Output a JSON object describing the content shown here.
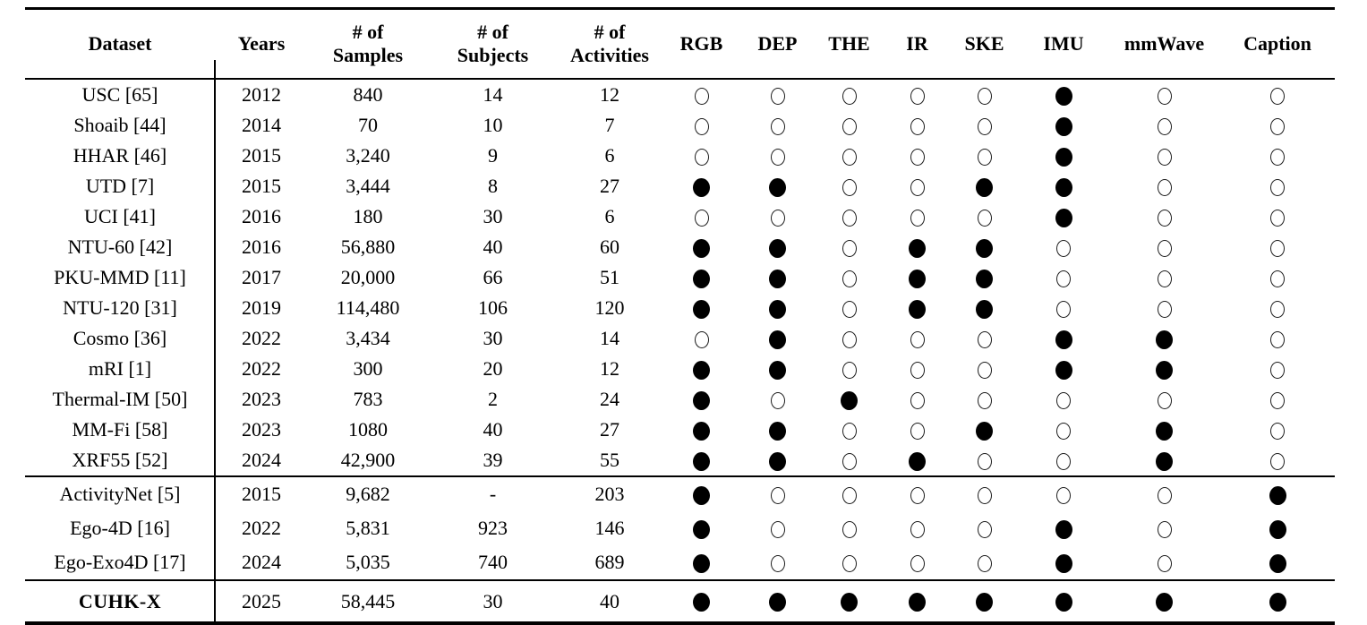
{
  "colors": {
    "background": "#ffffff",
    "text": "#000000",
    "rule": "#000000"
  },
  "icons": {
    "modality_present": "filled-circle",
    "modality_absent": "open-circle"
  },
  "table": {
    "columns": [
      {
        "id": "dataset",
        "label": "Dataset"
      },
      {
        "id": "years",
        "label": "Years"
      },
      {
        "id": "samples",
        "label": "# of\nSamples"
      },
      {
        "id": "subjects",
        "label": "# of\nSubjects"
      },
      {
        "id": "activities",
        "label": "# of\nActivities"
      },
      {
        "id": "rgb",
        "label": "RGB"
      },
      {
        "id": "dep",
        "label": "DEP"
      },
      {
        "id": "the",
        "label": "THE"
      },
      {
        "id": "ir",
        "label": "IR"
      },
      {
        "id": "ske",
        "label": "SKE"
      },
      {
        "id": "imu",
        "label": "IMU"
      },
      {
        "id": "mmwave",
        "label": "mmWave"
      },
      {
        "id": "caption",
        "label": "Caption"
      }
    ],
    "groups": [
      {
        "rows": [
          {
            "dataset": "USC [65]",
            "years": "2012",
            "samples": "840",
            "subjects": "14",
            "activities": "12",
            "modalities": [
              false,
              false,
              false,
              false,
              false,
              true,
              false,
              false
            ]
          },
          {
            "dataset": "Shoaib [44]",
            "years": "2014",
            "samples": "70",
            "subjects": "10",
            "activities": "7",
            "modalities": [
              false,
              false,
              false,
              false,
              false,
              true,
              false,
              false
            ]
          },
          {
            "dataset": "HHAR [46]",
            "years": "2015",
            "samples": "3,240",
            "subjects": "9",
            "activities": "6",
            "modalities": [
              false,
              false,
              false,
              false,
              false,
              true,
              false,
              false
            ]
          },
          {
            "dataset": "UTD [7]",
            "years": "2015",
            "samples": "3,444",
            "subjects": "8",
            "activities": "27",
            "modalities": [
              true,
              true,
              false,
              false,
              true,
              true,
              false,
              false
            ]
          },
          {
            "dataset": "UCI [41]",
            "years": "2016",
            "samples": "180",
            "subjects": "30",
            "activities": "6",
            "modalities": [
              false,
              false,
              false,
              false,
              false,
              true,
              false,
              false
            ]
          },
          {
            "dataset": "NTU-60 [42]",
            "years": "2016",
            "samples": "56,880",
            "subjects": "40",
            "activities": "60",
            "modalities": [
              true,
              true,
              false,
              true,
              true,
              false,
              false,
              false
            ]
          },
          {
            "dataset": "PKU-MMD [11]",
            "years": "2017",
            "samples": "20,000",
            "subjects": "66",
            "activities": "51",
            "modalities": [
              true,
              true,
              false,
              true,
              true,
              false,
              false,
              false
            ]
          },
          {
            "dataset": "NTU-120 [31]",
            "years": "2019",
            "samples": "114,480",
            "subjects": "106",
            "activities": "120",
            "modalities": [
              true,
              true,
              false,
              true,
              true,
              false,
              false,
              false
            ]
          },
          {
            "dataset": "Cosmo [36]",
            "years": "2022",
            "samples": "3,434",
            "subjects": "30",
            "activities": "14",
            "modalities": [
              false,
              true,
              false,
              false,
              false,
              true,
              true,
              false
            ]
          },
          {
            "dataset": "mRI [1]",
            "years": "2022",
            "samples": "300",
            "subjects": "20",
            "activities": "12",
            "modalities": [
              true,
              true,
              false,
              false,
              false,
              true,
              true,
              false
            ]
          },
          {
            "dataset": "Thermal-IM [50]",
            "years": "2023",
            "samples": "783",
            "subjects": "2",
            "activities": "24",
            "modalities": [
              true,
              false,
              true,
              false,
              false,
              false,
              false,
              false
            ]
          },
          {
            "dataset": "MM-Fi [58]",
            "years": "2023",
            "samples": "1080",
            "subjects": "40",
            "activities": "27",
            "modalities": [
              true,
              true,
              false,
              false,
              true,
              false,
              true,
              false
            ]
          },
          {
            "dataset": "XRF55 [52]",
            "years": "2024",
            "samples": "42,900",
            "subjects": "39",
            "activities": "55",
            "modalities": [
              true,
              true,
              false,
              true,
              false,
              false,
              true,
              false
            ]
          }
        ]
      },
      {
        "rows": [
          {
            "dataset": "ActivityNet [5]",
            "years": "2015",
            "samples": "9,682",
            "subjects": "-",
            "activities": "203",
            "modalities": [
              true,
              false,
              false,
              false,
              false,
              false,
              false,
              true
            ]
          },
          {
            "dataset": "Ego-4D [16]",
            "years": "2022",
            "samples": "5,831",
            "subjects": "923",
            "activities": "146",
            "modalities": [
              true,
              false,
              false,
              false,
              false,
              true,
              false,
              true
            ]
          },
          {
            "dataset": "Ego-Exo4D [17]",
            "years": "2024",
            "samples": "5,035",
            "subjects": "740",
            "activities": "689",
            "modalities": [
              true,
              false,
              false,
              false,
              false,
              true,
              false,
              true
            ]
          }
        ]
      },
      {
        "rows": [
          {
            "dataset": "CUHK-X",
            "bold": true,
            "years": "2025",
            "samples": "58,445",
            "subjects": "30",
            "activities": "40",
            "modalities": [
              true,
              true,
              true,
              true,
              true,
              true,
              true,
              true
            ]
          }
        ]
      }
    ]
  }
}
